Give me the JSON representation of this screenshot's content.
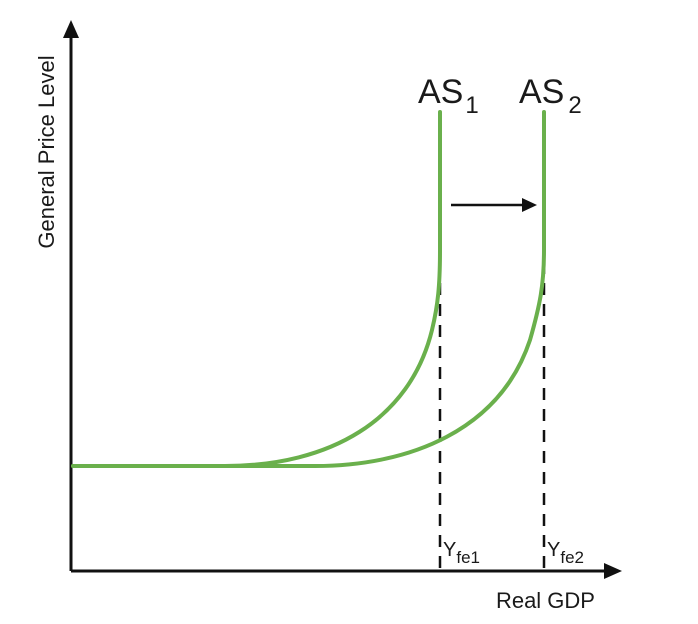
{
  "axes": {
    "y_label": "General Price Level",
    "x_label": "Real GDP"
  },
  "curves": [
    {
      "name": "AS",
      "subscript": "1",
      "color": "#6ab04c"
    },
    {
      "name": "AS",
      "subscript": "2",
      "color": "#6ab04c"
    }
  ],
  "markers": [
    {
      "main": "Y",
      "subscript": "fe1"
    },
    {
      "main": "Y",
      "subscript": "fe2"
    }
  ],
  "shift_arrow": {
    "direction": "right",
    "color": "#111111"
  }
}
